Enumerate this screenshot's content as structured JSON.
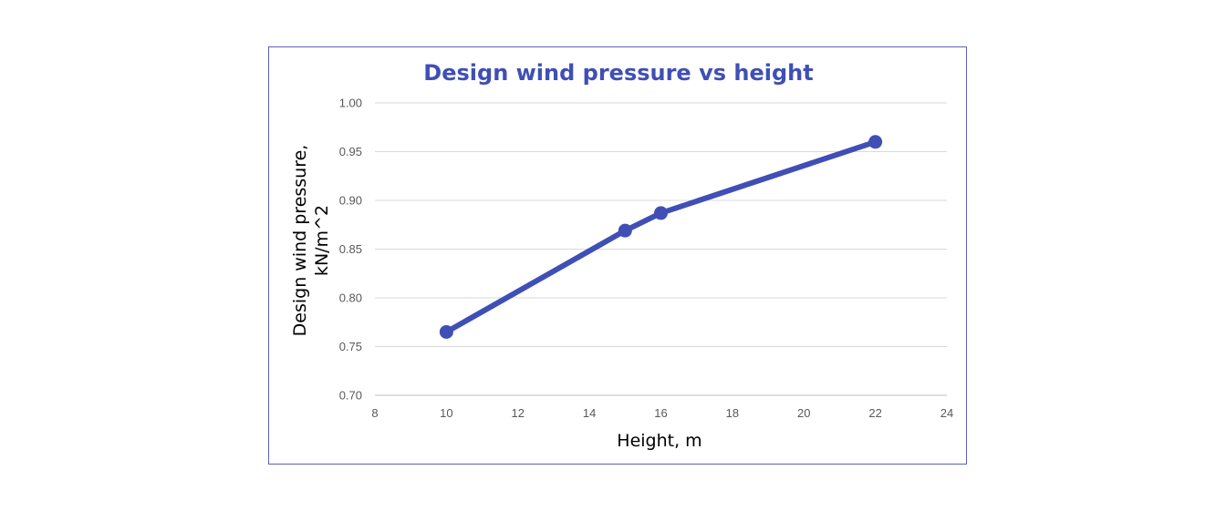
{
  "chart_data": {
    "type": "line",
    "title": "Design wind pressure vs height",
    "xlabel": "Height, m",
    "ylabel": [
      "Design wind pressure,",
      "kN/m^2"
    ],
    "xlim": [
      8,
      24
    ],
    "ylim": [
      0.7,
      1.0
    ],
    "x_ticks": [
      "8",
      "10",
      "12",
      "14",
      "16",
      "18",
      "20",
      "22",
      "24"
    ],
    "y_ticks": [
      "0.70",
      "0.75",
      "0.80",
      "0.85",
      "0.90",
      "0.95",
      "1.00"
    ],
    "grid": "horizontal",
    "series": [
      {
        "color": "#3f4fb5",
        "points": [
          {
            "x": 10,
            "y": 0.765
          },
          {
            "x": 15,
            "y": 0.869
          },
          {
            "x": 16,
            "y": 0.887
          },
          {
            "x": 22,
            "y": 0.96
          }
        ]
      }
    ]
  }
}
